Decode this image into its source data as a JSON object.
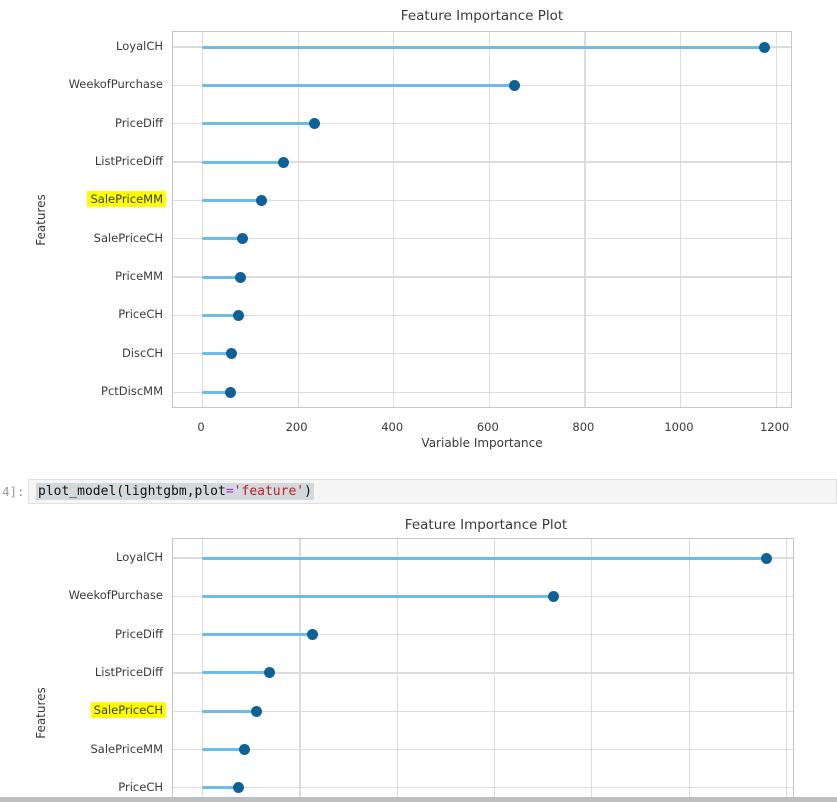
{
  "notebook": {
    "code_cell": {
      "prompt": "4]:",
      "code_parts": [
        {
          "text": "plot_model(lightgbm,plot",
          "style": "default"
        },
        {
          "text": "=",
          "style": "operator"
        },
        {
          "text": "'feature'",
          "style": "string"
        },
        {
          "text": ")",
          "style": "default"
        }
      ]
    }
  },
  "colors": {
    "stem": "#6bbde8",
    "dot": "#0f6295",
    "grid": "#dcdcdc",
    "spine": "#c6c6c6",
    "chart_text": "#3a3a3a",
    "find_highlight": "#ffff00",
    "code_default": "#111111",
    "code_operator": "#a622dd",
    "code_string": "#ba2121",
    "prompt_text": "#989898",
    "cell_background": "#f5f5f5",
    "cell_border": "#e1e1e1",
    "selection_background": "#d3d8dc",
    "scrollbar": "#bcbfc2"
  },
  "chart_data": [
    {
      "type": "bar",
      "variant": "horizontal-lollipop",
      "title": "Feature Importance Plot",
      "xlabel": "Variable Importance",
      "ylabel": "Features",
      "categories": [
        "LoyalCH",
        "WeekofPurchase",
        "PriceDiff",
        "ListPriceDiff",
        "SalePriceMM",
        "SalePriceCH",
        "PriceMM",
        "PriceCH",
        "DiscCH",
        "PctDiscMM"
      ],
      "values": [
        1176,
        654,
        235,
        171,
        125,
        85,
        81,
        76,
        62,
        60
      ],
      "xticks": [
        0,
        200,
        400,
        600,
        800,
        1000,
        1200
      ],
      "xlim": [
        -60,
        1236
      ],
      "grid": true,
      "legend": false,
      "highlighted_category": "SalePriceMM"
    },
    {
      "type": "bar",
      "variant": "horizontal-lollipop",
      "title": "Feature Importance Plot",
      "ylabel": "Features",
      "categories": [
        "LoyalCH",
        "WeekofPurchase",
        "PriceDiff",
        "ListPriceDiff",
        "SalePriceCH",
        "SalePriceMM",
        "PriceCH"
      ],
      "values": [
        1160,
        722,
        227,
        138,
        113,
        87,
        76
      ],
      "xticks": [
        0,
        200,
        400,
        600,
        800,
        1000,
        1200
      ],
      "xlim": [
        -60,
        1219
      ],
      "grid": true,
      "legend": false,
      "highlighted_category": "SalePriceCH",
      "clipped_bottom": true
    }
  ]
}
